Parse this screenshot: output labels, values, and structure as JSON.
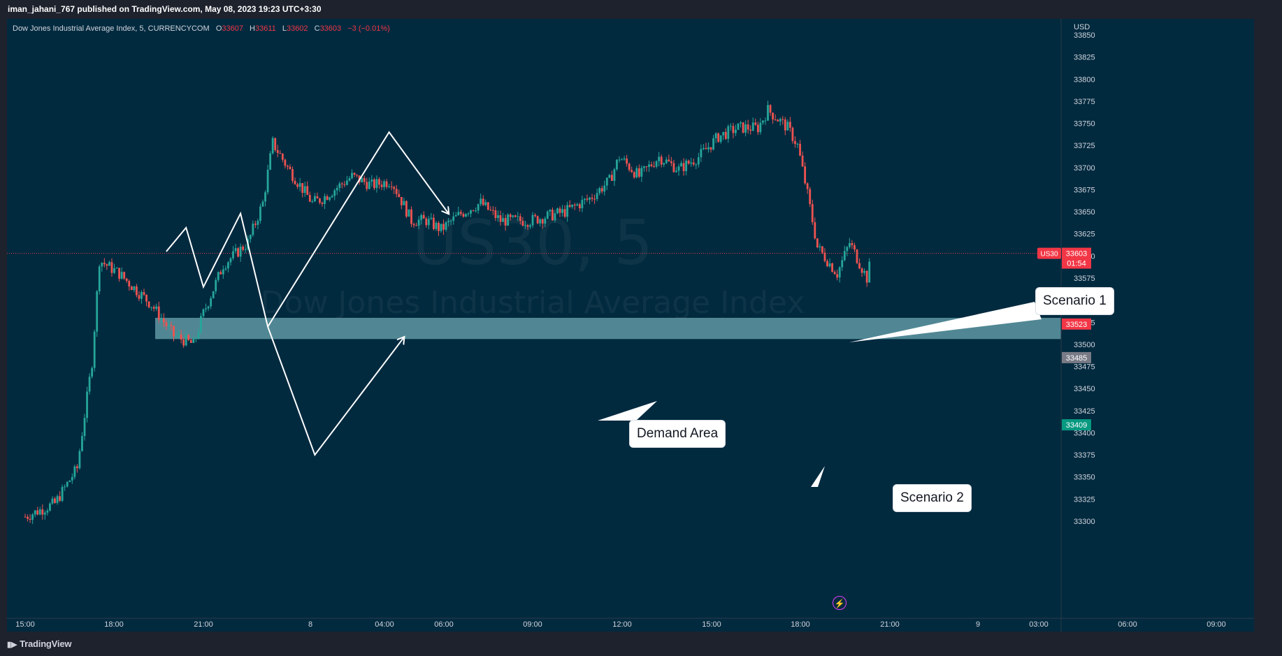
{
  "publish_bar": {
    "text": "iman_jahani_767 published on TradingView.com, May 08, 2023 19:23 UTC+3:30"
  },
  "legend": {
    "name": "Dow Jones Industrial Average Index, 5, CURRENCYCOM",
    "o_label": "O",
    "o_value": "33607",
    "h_label": "H",
    "h_value": "33611",
    "l_label": "L",
    "l_value": "33602",
    "c_label": "C",
    "c_value": "33603",
    "change": "−3 (−0.01%)"
  },
  "watermark": {
    "symbol": "US30, 5",
    "name": "Dow Jones Industrial Average Index"
  },
  "annotations": {
    "demand": "Demand Area",
    "scenario1": "Scenario 1",
    "scenario2": "Scenario 2"
  },
  "footer": {
    "brand": "TradingView"
  },
  "colors": {
    "background": "#022a3f",
    "up": "#26a69a",
    "down": "#ef5350",
    "zone": "#5f98a3"
  },
  "chart_data": {
    "type": "candlestick",
    "currency": "USD",
    "ylim": [
      33300,
      33860
    ],
    "y_ticks": [
      33300,
      33325,
      33350,
      33375,
      33400,
      33425,
      33450,
      33475,
      33500,
      33525,
      33550,
      33575,
      33600,
      33625,
      33650,
      33675,
      33700,
      33725,
      33750,
      33775,
      33800,
      33825,
      33850
    ],
    "x_ticks": [
      "15:00",
      "18:00",
      "21:00",
      "8",
      "04:00",
      "06:00",
      "09:00",
      "12:00",
      "15:00",
      "18:00",
      "21:00",
      "9",
      "03:00",
      "06:00",
      "09:00"
    ],
    "price_labels": [
      {
        "symbol": "US30",
        "value": "33603",
        "countdown": "01:54",
        "color": "#f23645"
      },
      {
        "value": "33523",
        "color": "#f23645"
      },
      {
        "value": "33485",
        "color": "#787b86"
      },
      {
        "value": "33409",
        "color": "#089981"
      }
    ],
    "demand_zone": [
      33506,
      33530
    ],
    "path_anchors": [
      {
        "t": "15:00",
        "close": 33305
      },
      {
        "t": "16:00",
        "close": 33320
      },
      {
        "t": "16:45",
        "close": 33360
      },
      {
        "t": "17:15",
        "close": 33480
      },
      {
        "t": "17:30",
        "close": 33595
      },
      {
        "t": "18:10",
        "close": 33580
      },
      {
        "t": "19:15",
        "close": 33545
      },
      {
        "t": "20:00",
        "close": 33510
      },
      {
        "t": "20:40",
        "close": 33500
      },
      {
        "t": "21:00",
        "close": 33535
      },
      {
        "t": "21:40",
        "close": 33590
      },
      {
        "t": "22:30",
        "close": 33615
      },
      {
        "t": "23:00",
        "close": 33660
      },
      {
        "t": "23:20",
        "close": 33728
      },
      {
        "t": "23:50",
        "close": 33700
      },
      {
        "t": "00:40",
        "close": 33660
      },
      {
        "t": "01:00",
        "close": 33665
      },
      {
        "t": "02:00",
        "close": 33690
      },
      {
        "t": "02:40",
        "close": 33680
      },
      {
        "t": "03:20",
        "close": 33685
      },
      {
        "t": "04:00",
        "close": 33640
      },
      {
        "t": "04:30",
        "close": 33640
      },
      {
        "t": "05:00",
        "close": 33630
      },
      {
        "t": "05:40",
        "close": 33648
      },
      {
        "t": "06:20",
        "close": 33660
      },
      {
        "t": "07:00",
        "close": 33640
      },
      {
        "t": "08:00",
        "close": 33640
      },
      {
        "t": "09:10",
        "close": 33650
      },
      {
        "t": "10:00",
        "close": 33665
      },
      {
        "t": "10:40",
        "close": 33685
      },
      {
        "t": "11:00",
        "close": 33712
      },
      {
        "t": "11:40",
        "close": 33690
      },
      {
        "t": "12:20",
        "close": 33712
      },
      {
        "t": "13:00",
        "close": 33698
      },
      {
        "t": "13:40",
        "close": 33712
      },
      {
        "t": "14:20",
        "close": 33735
      },
      {
        "t": "15:00",
        "close": 33745
      },
      {
        "t": "15:40",
        "close": 33745
      },
      {
        "t": "16:00",
        "close": 33765
      },
      {
        "t": "16:40",
        "close": 33745
      },
      {
        "t": "17:00",
        "close": 33725
      },
      {
        "t": "17:20",
        "close": 33670
      },
      {
        "t": "17:40",
        "close": 33610
      },
      {
        "t": "18:00",
        "close": 33595
      },
      {
        "t": "18:20",
        "close": 33580
      },
      {
        "t": "18:45",
        "close": 33615
      },
      {
        "t": "19:20",
        "close": 33575
      },
      {
        "t": "19:30",
        "close": 33600
      }
    ],
    "scenario_path": [
      {
        "t": "19:45",
        "value": 33605
      },
      {
        "t": "20:25",
        "value": 33632
      },
      {
        "t": "21:00",
        "value": 33565
      },
      {
        "t": "22:15",
        "value": 33648
      },
      {
        "t": "23:10",
        "value": 33520
      },
      {
        "t": "00:45",
        "value": 33375
      },
      {
        "t": "03:45",
        "value": 33508
      }
    ],
    "scenario1_path": [
      {
        "t": "23:10",
        "value": 33520
      },
      {
        "t": "03:15",
        "value": 33740
      },
      {
        "t": "05:15",
        "value": 33648
      }
    ]
  }
}
